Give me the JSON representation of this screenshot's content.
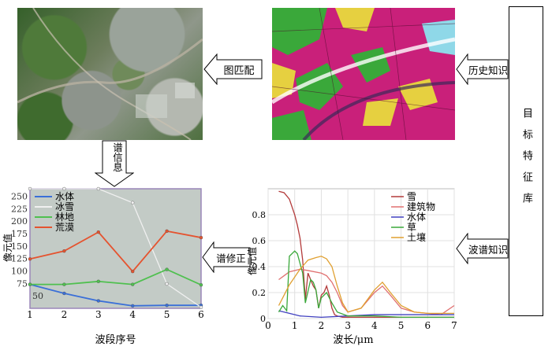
{
  "labels": {
    "image_matching": "图匹配",
    "historical_knowledge": "历史知识",
    "feature_library": "目标特征库",
    "spectral_info": "谱信息",
    "spectral_correction": "谱修正",
    "spectral_knowledge": "波谱知识"
  },
  "left_chart": {
    "ylabel": "像元值",
    "xlabel": "波段序号",
    "xticks": [
      "1",
      "2",
      "3",
      "4",
      "5",
      "6"
    ],
    "yticks": [
      "50",
      "75",
      "100",
      "125",
      "150",
      "175",
      "200",
      "225",
      "250"
    ],
    "legend": [
      "水体",
      "冰雪",
      "林地",
      "荒漠"
    ]
  },
  "right_chart": {
    "ylabel": "像元值",
    "xlabel": "波长/μm",
    "xticks": [
      "0",
      "1",
      "2",
      "3",
      "4",
      "5",
      "6",
      "7"
    ],
    "yticks": [
      "0",
      "0.2",
      "0.4",
      "0.6",
      "0.8"
    ],
    "legend": [
      "雪",
      "建筑物",
      "水体",
      "草",
      "土壤"
    ]
  },
  "chart_data": [
    {
      "type": "line",
      "xlabel": "波段序号",
      "ylabel": "像元值",
      "x": [
        1,
        2,
        3,
        4,
        5,
        6
      ],
      "ylim": [
        25,
        265
      ],
      "grid": false,
      "legend_position": "top-left",
      "series": [
        {
          "name": "水体",
          "color": "#3a6fd8",
          "values": [
            73,
            55,
            40,
            30,
            31,
            31
          ]
        },
        {
          "name": "冰雪",
          "color": "#f0f0f0",
          "values": [
            265,
            265,
            265,
            237,
            74,
            27
          ]
        },
        {
          "name": "林地",
          "color": "#4fc04f",
          "values": [
            73,
            73,
            79,
            73,
            103,
            72
          ]
        },
        {
          "name": "荒漠",
          "color": "#e5532f",
          "values": [
            124,
            140,
            178,
            99,
            180,
            167
          ]
        }
      ]
    },
    {
      "type": "line",
      "xlabel": "波长/μm",
      "ylabel": "像元值",
      "xlim": [
        0,
        7
      ],
      "ylim": [
        0,
        1.0
      ],
      "grid": true,
      "legend_position": "top-right",
      "series": [
        {
          "name": "雪",
          "color": "#b33a3a",
          "x": [
            0.4,
            0.6,
            0.8,
            1.0,
            1.1,
            1.2,
            1.3,
            1.4,
            1.5,
            1.6,
            1.7,
            1.8,
            1.9,
            2.0,
            2.1,
            2.2,
            2.3,
            2.4,
            2.5,
            2.6,
            2.8,
            3.0,
            4.0,
            5.0,
            6.0,
            7.0
          ],
          "values": [
            0.98,
            0.97,
            0.92,
            0.8,
            0.72,
            0.62,
            0.45,
            0.15,
            0.35,
            0.3,
            0.25,
            0.22,
            0.08,
            0.18,
            0.2,
            0.25,
            0.18,
            0.08,
            0.03,
            0.02,
            0.01,
            0.01,
            0.01,
            0.01,
            0.01,
            0.01
          ]
        },
        {
          "name": "建筑物",
          "color": "#e07070",
          "x": [
            0.4,
            0.6,
            0.8,
            1.0,
            1.2,
            1.5,
            2.0,
            2.2,
            2.4,
            2.6,
            2.8,
            3.0,
            3.5,
            4.0,
            4.3,
            4.6,
            5.0,
            5.5,
            6.0,
            6.5,
            7.0
          ],
          "values": [
            0.3,
            0.33,
            0.36,
            0.37,
            0.38,
            0.37,
            0.35,
            0.33,
            0.28,
            0.2,
            0.1,
            0.05,
            0.08,
            0.2,
            0.25,
            0.18,
            0.08,
            0.05,
            0.04,
            0.03,
            0.1
          ]
        },
        {
          "name": "水体",
          "color": "#4040c0",
          "x": [
            0.4,
            0.8,
            1.2,
            2.0,
            3.0,
            4.0,
            5.0,
            6.0,
            7.0
          ],
          "values": [
            0.06,
            0.04,
            0.02,
            0.01,
            0.02,
            0.03,
            0.03,
            0.03,
            0.03
          ]
        },
        {
          "name": "草",
          "color": "#3aa83a",
          "x": [
            0.4,
            0.55,
            0.7,
            0.8,
            1.0,
            1.1,
            1.3,
            1.4,
            1.6,
            1.7,
            1.8,
            1.9,
            2.0,
            2.2,
            2.4,
            2.6,
            3.0,
            4.0,
            5.0,
            6.0,
            7.0
          ],
          "values": [
            0.05,
            0.1,
            0.06,
            0.48,
            0.52,
            0.5,
            0.35,
            0.12,
            0.3,
            0.28,
            0.22,
            0.08,
            0.16,
            0.2,
            0.12,
            0.05,
            0.02,
            0.02,
            0.01,
            0.01,
            0.01
          ]
        },
        {
          "name": "土壤",
          "color": "#e0a030",
          "x": [
            0.4,
            0.6,
            0.8,
            1.0,
            1.2,
            1.5,
            1.8,
            2.0,
            2.2,
            2.4,
            2.6,
            2.8,
            3.0,
            3.5,
            4.0,
            4.3,
            4.6,
            5.0,
            5.5,
            6.0,
            7.0
          ],
          "values": [
            0.1,
            0.18,
            0.26,
            0.32,
            0.38,
            0.45,
            0.47,
            0.48,
            0.46,
            0.4,
            0.25,
            0.12,
            0.05,
            0.08,
            0.22,
            0.28,
            0.2,
            0.1,
            0.05,
            0.04,
            0.04
          ]
        }
      ]
    }
  ]
}
